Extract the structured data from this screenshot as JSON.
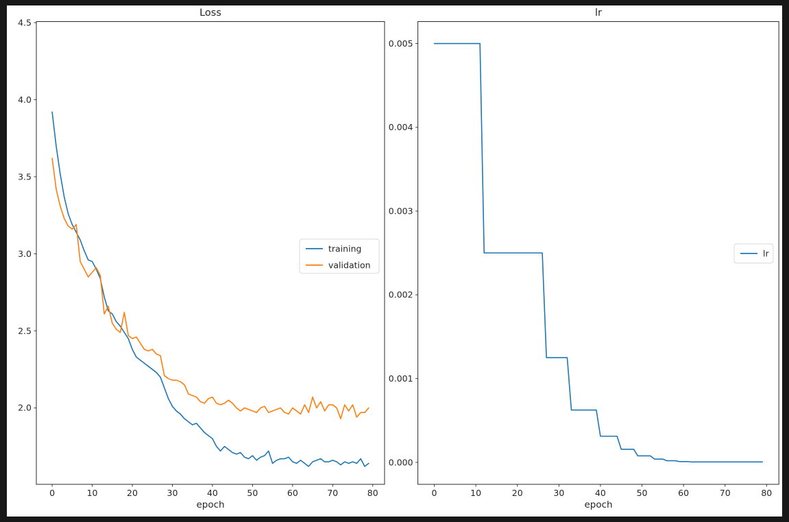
{
  "page": {
    "background": "#181818",
    "figure_background": "#ffffff"
  },
  "chart_data": [
    {
      "type": "line",
      "title": "Loss",
      "xlabel": "epoch",
      "ylabel": "",
      "x_start": 0,
      "xlim": [
        -3.95,
        82.95
      ],
      "ylim": [
        1.504,
        4.507
      ],
      "xticks": [
        0,
        10,
        20,
        30,
        40,
        50,
        60,
        70,
        80
      ],
      "yticks": [
        4.5,
        4.0,
        3.5,
        3.0,
        2.5,
        2.0
      ],
      "ytick_decimals": 1,
      "grid": false,
      "legend_position": "center right",
      "legend_entries": [
        "training",
        "validation"
      ],
      "series": [
        {
          "name": "training",
          "color": "#1f77b4",
          "values": [
            3.92,
            3.7,
            3.52,
            3.37,
            3.26,
            3.19,
            3.14,
            3.09,
            3.02,
            2.96,
            2.95,
            2.9,
            2.84,
            2.72,
            2.63,
            2.61,
            2.56,
            2.53,
            2.49,
            2.45,
            2.38,
            2.33,
            2.31,
            2.29,
            2.27,
            2.25,
            2.23,
            2.2,
            2.13,
            2.06,
            2.01,
            1.98,
            1.96,
            1.93,
            1.91,
            1.89,
            1.9,
            1.87,
            1.84,
            1.82,
            1.8,
            1.75,
            1.72,
            1.75,
            1.73,
            1.71,
            1.7,
            1.71,
            1.68,
            1.67,
            1.69,
            1.66,
            1.68,
            1.69,
            1.72,
            1.64,
            1.66,
            1.67,
            1.67,
            1.68,
            1.65,
            1.64,
            1.66,
            1.64,
            1.62,
            1.65,
            1.66,
            1.67,
            1.65,
            1.65,
            1.66,
            1.65,
            1.63,
            1.65,
            1.64,
            1.65,
            1.64,
            1.67,
            1.62,
            1.64
          ]
        },
        {
          "name": "validation",
          "color": "#ff7f0e",
          "values": [
            3.62,
            3.42,
            3.31,
            3.23,
            3.18,
            3.16,
            3.19,
            2.95,
            2.9,
            2.85,
            2.88,
            2.91,
            2.86,
            2.61,
            2.66,
            2.55,
            2.51,
            2.49,
            2.62,
            2.47,
            2.45,
            2.46,
            2.42,
            2.38,
            2.37,
            2.38,
            2.35,
            2.34,
            2.21,
            2.19,
            2.18,
            2.18,
            2.17,
            2.15,
            2.09,
            2.08,
            2.07,
            2.04,
            2.03,
            2.06,
            2.07,
            2.03,
            2.02,
            2.03,
            2.05,
            2.03,
            2.0,
            1.98,
            2.0,
            1.99,
            1.98,
            1.97,
            2.0,
            2.01,
            1.97,
            1.98,
            1.99,
            2.0,
            1.97,
            1.96,
            2.0,
            1.98,
            1.96,
            2.02,
            1.97,
            2.07,
            2.0,
            2.04,
            1.98,
            2.02,
            2.02,
            2.0,
            1.93,
            2.02,
            1.98,
            2.02,
            1.94,
            1.97,
            1.97,
            2.0
          ]
        }
      ]
    },
    {
      "type": "line",
      "title": "lr",
      "xlabel": "epoch",
      "ylabel": "",
      "x_start": 0,
      "xlim": [
        -3.95,
        82.95
      ],
      "ylim": [
        -0.000262,
        0.005262
      ],
      "xticks": [
        0,
        10,
        20,
        30,
        40,
        50,
        60,
        70,
        80
      ],
      "yticks": [
        0.005,
        0.004,
        0.003,
        0.002,
        0.001,
        0.0
      ],
      "ytick_decimals": 3,
      "grid": false,
      "legend_position": "center right",
      "legend_entries": [
        "lr"
      ],
      "series": [
        {
          "name": "lr",
          "color": "#1f77b4",
          "values": [
            0.005,
            0.005,
            0.005,
            0.005,
            0.005,
            0.005,
            0.005,
            0.005,
            0.005,
            0.005,
            0.005,
            0.005,
            0.0025,
            0.0025,
            0.0025,
            0.0025,
            0.0025,
            0.0025,
            0.0025,
            0.0025,
            0.0025,
            0.0025,
            0.0025,
            0.0025,
            0.0025,
            0.0025,
            0.0025,
            0.00125,
            0.00125,
            0.00125,
            0.00125,
            0.00125,
            0.00125,
            0.000625,
            0.000625,
            0.000625,
            0.000625,
            0.000625,
            0.000625,
            0.000625,
            0.0003125,
            0.0003125,
            0.0003125,
            0.0003125,
            0.0003125,
            0.00015625,
            0.00015625,
            0.00015625,
            0.00015625,
            7.8125e-05,
            7.8125e-05,
            7.8125e-05,
            7.8125e-05,
            3.90625e-05,
            3.90625e-05,
            3.90625e-05,
            1.95313e-05,
            1.95313e-05,
            1.95313e-05,
            9.7656e-06,
            9.7656e-06,
            9.7656e-06,
            4.8828e-06,
            4.8828e-06,
            4.8828e-06,
            4.8828e-06,
            4.8828e-06,
            4.8828e-06,
            4.8828e-06,
            4.8828e-06,
            4.8828e-06,
            4.8828e-06,
            4.8828e-06,
            4.8828e-06,
            4.8828e-06,
            4.8828e-06,
            4.8828e-06,
            4.8828e-06,
            4.8828e-06,
            4.8828e-06
          ]
        }
      ]
    }
  ]
}
